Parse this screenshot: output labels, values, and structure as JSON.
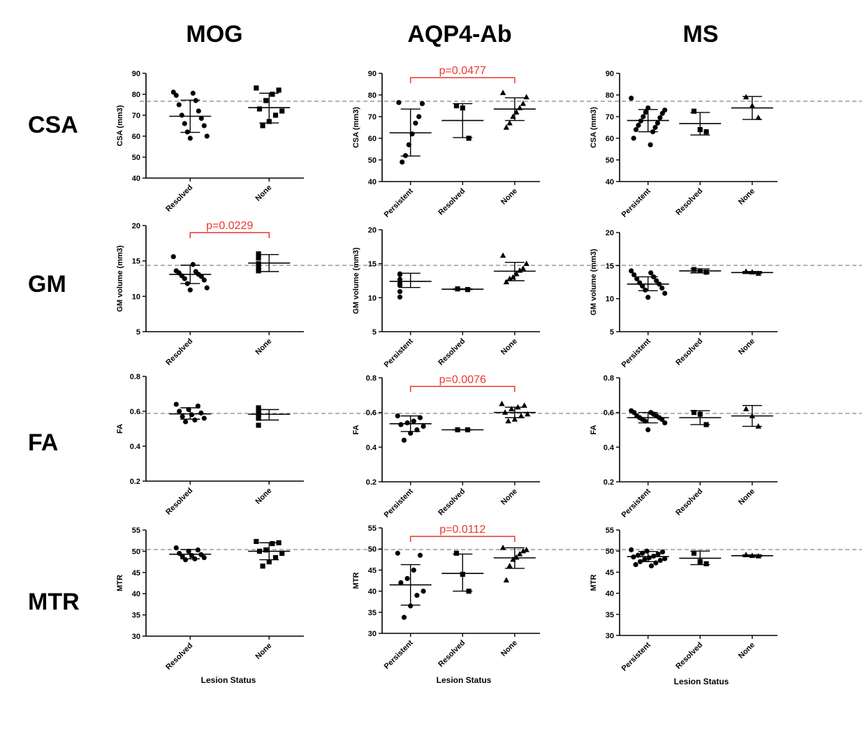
{
  "column_titles": [
    "MOG",
    "AQP4-Ab",
    "MS"
  ],
  "row_titles": [
    "CSA",
    "GM",
    "FA",
    "MTR"
  ],
  "x_axis_label": "Lesion Status",
  "colors": {
    "points": "#000000",
    "reference_line": "#999999",
    "significance": "#e8382c"
  },
  "chart_data": [
    {
      "type": "scatter",
      "id": "csa-mog",
      "title": "CSA / MOG",
      "ylabel": "CSA (mm3)",
      "ylim": [
        40,
        90
      ],
      "yticks": [
        40,
        50,
        60,
        70,
        80,
        90
      ],
      "categories": [
        "Resolved",
        "None"
      ],
      "markers": [
        "circle",
        "square"
      ],
      "reference": 75.3,
      "series": [
        {
          "name": "Resolved",
          "values": [
            81,
            80.5,
            79.5,
            77,
            75,
            72,
            70,
            68.5,
            66,
            65,
            62,
            60,
            59
          ],
          "mean": 69.5,
          "sd": [
            61.8,
            77.2
          ]
        },
        {
          "name": "None",
          "values": [
            83,
            82,
            80,
            77,
            73,
            72,
            70,
            67,
            65
          ],
          "mean": 73.6,
          "sd": [
            66.3,
            80.5
          ]
        }
      ]
    },
    {
      "type": "scatter",
      "id": "csa-aqp4",
      "title": "CSA / AQP4-Ab",
      "ylabel": "CSA (mm3)",
      "ylim": [
        40,
        90
      ],
      "yticks": [
        40,
        50,
        60,
        70,
        80,
        90
      ],
      "categories": [
        "Persistent",
        "Resolved",
        "None"
      ],
      "markers": [
        "circle",
        "square",
        "triangle"
      ],
      "reference": 75.3,
      "series": [
        {
          "name": "Persistent",
          "values": [
            76.5,
            76,
            70,
            67,
            62,
            57,
            52,
            49
          ],
          "mean": 62.5,
          "sd": [
            51.8,
            73.5
          ]
        },
        {
          "name": "Resolved",
          "values": [
            75,
            74,
            60
          ],
          "mean": 68.2,
          "sd": [
            60.3,
            76
          ]
        },
        {
          "name": "None",
          "values": [
            81,
            79,
            76,
            74,
            72,
            70,
            67,
            65
          ],
          "mean": 73.5,
          "sd": [
            68.2,
            78.7
          ]
        }
      ],
      "annotations": [
        {
          "text": "p=0.0477",
          "from": "Persistent",
          "to": "None",
          "y": 88
        }
      ]
    },
    {
      "type": "scatter",
      "id": "csa-ms",
      "title": "CSA / MS",
      "ylabel": "CSA (mm3)",
      "ylim": [
        40,
        90
      ],
      "yticks": [
        40,
        50,
        60,
        70,
        80,
        90
      ],
      "categories": [
        "Persistent",
        "Resolved",
        "None"
      ],
      "markers": [
        "circle",
        "square",
        "triangle"
      ],
      "reference": 75.3,
      "series": [
        {
          "name": "Persistent",
          "values": [
            78.5,
            74,
            73,
            72,
            71.5,
            70,
            69.5,
            68,
            67,
            66,
            65,
            64,
            63,
            60,
            57
          ],
          "mean": 68.2,
          "sd": [
            63,
            73.3
          ]
        },
        {
          "name": "Resolved",
          "values": [
            72.5,
            64,
            63
          ],
          "mean": 66.8,
          "sd": [
            61.5,
            71.9
          ]
        },
        {
          "name": "None",
          "values": [
            79,
            75,
            69.5
          ],
          "mean": 74,
          "sd": [
            68.7,
            79.3
          ]
        }
      ]
    },
    {
      "type": "scatter",
      "id": "gm-mog",
      "title": "GM / MOG",
      "ylabel": "GM volume (mm3)",
      "ylim": [
        5,
        20
      ],
      "yticks": [
        5,
        10,
        15,
        20
      ],
      "categories": [
        "Resolved",
        "None"
      ],
      "markers": [
        "circle",
        "square"
      ],
      "reference": 14.3,
      "series": [
        {
          "name": "Resolved",
          "values": [
            15.6,
            14.5,
            13.6,
            13.5,
            13.3,
            13.1,
            12.9,
            12.8,
            12.5,
            12.3,
            11.8,
            11.2,
            10.9
          ],
          "mean": 13.1,
          "sd": [
            11.8,
            14.4
          ]
        },
        {
          "name": "None",
          "values": [
            16,
            15.4,
            14.6,
            14.1,
            13.8,
            13.7,
            13.6
          ],
          "mean": 14.7,
          "sd": [
            13.5,
            15.9
          ]
        }
      ],
      "annotations": [
        {
          "text": "p=0.0229",
          "from": "Resolved",
          "to": "None",
          "y": 19
        }
      ]
    },
    {
      "type": "scatter",
      "id": "gm-aqp4",
      "title": "GM / AQP4-Ab",
      "ylabel": "GM volume (mm3)",
      "ylim": [
        5,
        20
      ],
      "yticks": [
        5,
        10,
        15,
        20
      ],
      "categories": [
        "Persistent",
        "Resolved",
        "None"
      ],
      "markers": [
        "circle",
        "square",
        "triangle"
      ],
      "reference": 14.7,
      "series": [
        {
          "name": "Persistent",
          "values": [
            13.5,
            13.4,
            12.7,
            12.1,
            11.8,
            10.9,
            10.1
          ],
          "mean": 12.4,
          "sd": [
            11.5,
            13.6
          ]
        },
        {
          "name": "Resolved",
          "values": [
            11.3,
            11.2
          ],
          "mean": 11.25,
          "sd": [
            11.2,
            11.3
          ]
        },
        {
          "name": "None",
          "values": [
            16.2,
            15,
            14.3,
            14,
            13.5,
            13,
            12.8,
            12.3
          ],
          "mean": 13.9,
          "sd": [
            12.5,
            15.2
          ]
        }
      ]
    },
    {
      "type": "scatter",
      "id": "gm-ms",
      "title": "GM / MS",
      "ylabel": "GM volume (mm3)",
      "ylim": [
        5,
        20
      ],
      "yticks": [
        5,
        10,
        15,
        20
      ],
      "categories": [
        "Persistent",
        "Resolved",
        "None"
      ],
      "markers": [
        "circle",
        "square",
        "triangle"
      ],
      "reference": 14.7,
      "series": [
        {
          "name": "Persistent",
          "values": [
            14.2,
            13.9,
            13.6,
            13.3,
            13,
            12.7,
            12.4,
            12.2,
            11.9,
            11.6,
            11.3,
            10.8,
            10.2
          ],
          "mean": 12.2,
          "sd": [
            11.2,
            13.3
          ]
        },
        {
          "name": "Resolved",
          "values": [
            14.4,
            14.2,
            14
          ],
          "mean": 14.2,
          "sd": [
            13.9,
            14.5
          ]
        },
        {
          "name": "None",
          "values": [
            14.1,
            14,
            13.8
          ],
          "mean": 13.95,
          "sd": [
            13.8,
            14.1
          ]
        }
      ]
    },
    {
      "type": "scatter",
      "id": "fa-mog",
      "title": "FA / MOG",
      "ylabel": "FA",
      "ylim": [
        0.2,
        0.8
      ],
      "yticks": [
        0.2,
        0.4,
        0.6,
        0.8
      ],
      "categories": [
        "Resolved",
        "None"
      ],
      "markers": [
        "circle",
        "square"
      ],
      "reference": 0.59,
      "series": [
        {
          "name": "Resolved",
          "values": [
            0.64,
            0.63,
            0.61,
            0.6,
            0.59,
            0.58,
            0.57,
            0.56,
            0.55,
            0.54
          ],
          "mean": 0.585,
          "sd": [
            0.555,
            0.62
          ]
        },
        {
          "name": "None",
          "values": [
            0.62,
            0.61,
            0.6,
            0.59,
            0.58,
            0.56,
            0.52
          ],
          "mean": 0.583,
          "sd": [
            0.55,
            0.61
          ]
        }
      ]
    },
    {
      "type": "scatter",
      "id": "fa-aqp4",
      "title": "FA / AQP4-Ab",
      "ylabel": "FA",
      "ylim": [
        0.2,
        0.8
      ],
      "yticks": [
        0.2,
        0.4,
        0.6,
        0.8
      ],
      "categories": [
        "Persistent",
        "Resolved",
        "None"
      ],
      "markers": [
        "circle",
        "square",
        "triangle"
      ],
      "reference": 0.6,
      "series": [
        {
          "name": "Persistent",
          "values": [
            0.58,
            0.57,
            0.55,
            0.54,
            0.53,
            0.52,
            0.5,
            0.48,
            0.44
          ],
          "mean": 0.535,
          "sd": [
            0.49,
            0.58
          ]
        },
        {
          "name": "Resolved",
          "values": [
            0.5,
            0.5
          ],
          "mean": 0.5,
          "sd": [
            0.5,
            0.5
          ]
        },
        {
          "name": "None",
          "values": [
            0.65,
            0.64,
            0.63,
            0.62,
            0.6,
            0.59,
            0.58,
            0.56,
            0.55
          ],
          "mean": 0.6,
          "sd": [
            0.57,
            0.63
          ]
        }
      ],
      "annotations": [
        {
          "text": "p=0.0076",
          "from": "Persistent",
          "to": "None",
          "y": 0.75
        }
      ]
    },
    {
      "type": "scatter",
      "id": "fa-ms",
      "title": "FA / MS",
      "ylabel": "FA",
      "ylim": [
        0.2,
        0.8
      ],
      "yticks": [
        0.2,
        0.4,
        0.6,
        0.8
      ],
      "categories": [
        "Persistent",
        "Resolved",
        "None"
      ],
      "markers": [
        "circle",
        "square",
        "triangle"
      ],
      "reference": 0.6,
      "series": [
        {
          "name": "Persistent",
          "values": [
            0.61,
            0.6,
            0.6,
            0.59,
            0.58,
            0.58,
            0.57,
            0.57,
            0.56,
            0.56,
            0.55,
            0.54,
            0.5
          ],
          "mean": 0.57,
          "sd": [
            0.54,
            0.6
          ]
        },
        {
          "name": "Resolved",
          "values": [
            0.6,
            0.59,
            0.53
          ],
          "mean": 0.57,
          "sd": [
            0.53,
            0.61
          ]
        },
        {
          "name": "None",
          "values": [
            0.62,
            0.58,
            0.52
          ],
          "mean": 0.58,
          "sd": [
            0.52,
            0.64
          ]
        }
      ]
    },
    {
      "type": "scatter",
      "id": "mtr-mog",
      "title": "MTR / MOG",
      "ylabel": "MTR",
      "ylim": [
        30,
        55
      ],
      "yticks": [
        30,
        35,
        40,
        45,
        50,
        55
      ],
      "categories": [
        "Resolved",
        "None"
      ],
      "markers": [
        "circle",
        "square"
      ],
      "reference": 50.3,
      "series": [
        {
          "name": "Resolved",
          "values": [
            50.8,
            50.3,
            50,
            49.5,
            49.2,
            49,
            48.8,
            48.5,
            48.2,
            48
          ],
          "mean": 49.3,
          "sd": [
            48.2,
            50.4
          ]
        },
        {
          "name": "None",
          "values": [
            52.3,
            52,
            51.8,
            50.3,
            50,
            49.5,
            48.5,
            47.5,
            46.5
          ],
          "mean": 50,
          "sd": [
            48,
            52
          ]
        }
      ]
    },
    {
      "type": "scatter",
      "id": "mtr-aqp4",
      "title": "MTR / AQP4-Ab",
      "ylabel": "MTR",
      "ylim": [
        30,
        55
      ],
      "yticks": [
        30,
        35,
        40,
        45,
        50,
        55
      ],
      "categories": [
        "Persistent",
        "Resolved",
        "None"
      ],
      "markers": [
        "circle",
        "square",
        "triangle"
      ],
      "reference": 50.3,
      "series": [
        {
          "name": "Persistent",
          "values": [
            49,
            48.5,
            45,
            43,
            42,
            40,
            39,
            36.5,
            33.8
          ],
          "mean": 41.5,
          "sd": [
            36.7,
            46.3
          ]
        },
        {
          "name": "Resolved",
          "values": [
            49,
            44,
            40
          ],
          "mean": 44.2,
          "sd": [
            40,
            48.8
          ]
        },
        {
          "name": "None",
          "values": [
            50.3,
            49.8,
            49.5,
            48.8,
            48,
            47.5,
            46,
            42.6
          ],
          "mean": 47.9,
          "sd": [
            45.4,
            50.3
          ]
        }
      ],
      "annotations": [
        {
          "text": "p=0.0112",
          "from": "Persistent",
          "to": "None",
          "y": 53
        }
      ]
    },
    {
      "type": "scatter",
      "id": "mtr-ms",
      "title": "MTR / MS",
      "ylabel": "MTR",
      "ylim": [
        30,
        55
      ],
      "yticks": [
        30,
        35,
        40,
        45,
        50,
        55
      ],
      "categories": [
        "Persistent",
        "Resolved",
        "None"
      ],
      "markers": [
        "circle",
        "square",
        "triangle"
      ],
      "reference": 50.3,
      "series": [
        {
          "name": "Persistent",
          "values": [
            50.3,
            50,
            49.8,
            49.5,
            49.3,
            49,
            48.8,
            48.6,
            48.4,
            48.2,
            48,
            47.8,
            47.5,
            47.2,
            46.8,
            46.5
          ],
          "mean": 48.7,
          "sd": [
            47.5,
            49.9
          ]
        },
        {
          "name": "Resolved",
          "values": [
            49.5,
            47.5,
            47
          ],
          "mean": 48.3,
          "sd": [
            46.8,
            50
          ]
        },
        {
          "name": "None",
          "values": [
            49.1,
            48.9,
            48.8
          ],
          "mean": 48.9,
          "sd": [
            48.7,
            49.1
          ]
        }
      ]
    }
  ]
}
